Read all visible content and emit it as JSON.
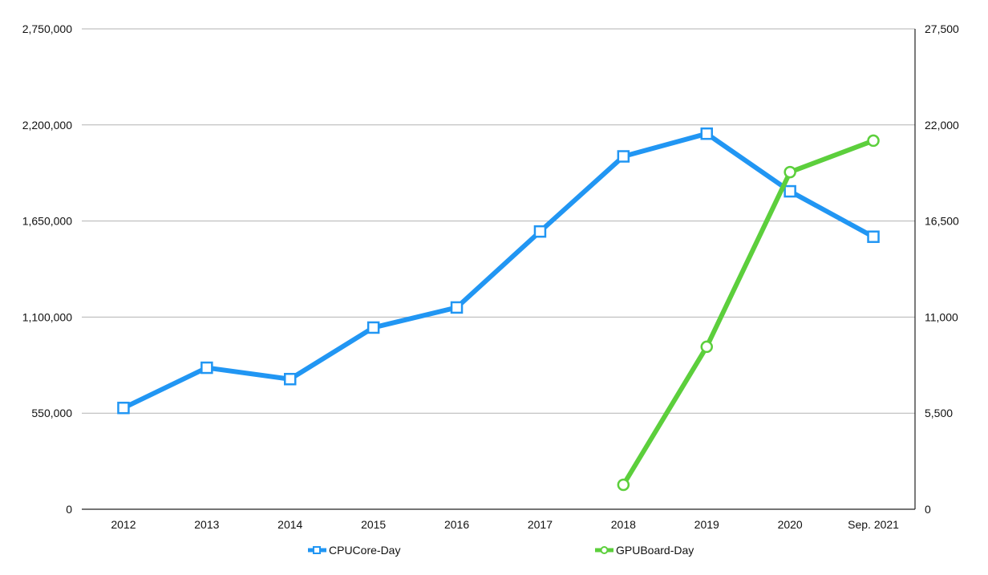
{
  "chart_data": {
    "type": "line",
    "categories": [
      "2012",
      "2013",
      "2014",
      "2015",
      "2016",
      "2017",
      "2018",
      "2019",
      "2020",
      "Sep. 2021"
    ],
    "y_left": {
      "range": [
        0,
        2750000
      ],
      "ticks": [
        0,
        550000,
        1100000,
        1650000,
        2200000,
        2750000
      ],
      "tick_labels": [
        "0",
        "550,000",
        "1,100,000",
        "1,650,000",
        "2,200,000",
        "2,750,000"
      ]
    },
    "y_right": {
      "range": [
        0,
        27500
      ],
      "ticks": [
        0,
        5500,
        11000,
        16500,
        22000,
        27500
      ],
      "tick_labels": [
        "0",
        "5,500",
        "11,000",
        "16,500",
        "22,000",
        "27,500"
      ]
    },
    "grid": true,
    "legend_position": "bottom",
    "series": [
      {
        "name": "CPUCore-Day",
        "axis": "left",
        "color": "#2196f3",
        "marker": "square",
        "values": [
          580000,
          810000,
          745000,
          1040000,
          1155000,
          1590000,
          2020000,
          2150000,
          1820000,
          1560000
        ]
      },
      {
        "name": "GPUBoard-Day",
        "axis": "right",
        "color": "#5ccf3c",
        "marker": "circle",
        "values": [
          null,
          null,
          null,
          null,
          null,
          null,
          1400,
          9300,
          19300,
          21100
        ]
      }
    ]
  }
}
